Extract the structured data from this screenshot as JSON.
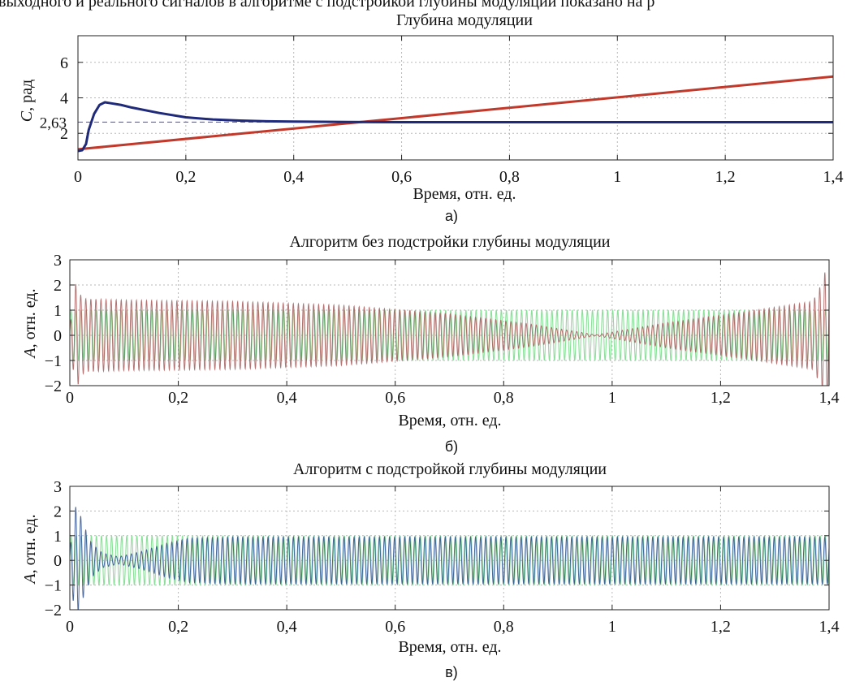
{
  "header_text": "выходного и реального сигналов в алгоритме с подстройкой глубины модуляции показано на р",
  "chart_data": [
    {
      "type": "line",
      "panel_label": "а)",
      "title": "Глубина модуляции",
      "xlabel": "Время, отн. ед.",
      "ylabel_italic": "C",
      "ylabel_rest": ", рад",
      "xlim": [
        0,
        1.4
      ],
      "ylim": [
        0.5,
        7.5
      ],
      "xticks": [
        0,
        0.2,
        0.4,
        0.6,
        0.8,
        1,
        1.2,
        1.4
      ],
      "xtick_labels": [
        "0",
        "0,2",
        "0,4",
        "0,6",
        "0,8",
        "1",
        "1,2",
        "1,4"
      ],
      "yticks": [
        2,
        4,
        6
      ],
      "ytick_labels": [
        "2",
        "4",
        "6"
      ],
      "reference_line": {
        "value": 2.63,
        "label": "2,63",
        "color": "#6a6a8a"
      },
      "grid": true,
      "series": [
        {
          "color": "#c0392b",
          "x": [
            0,
            1.4
          ],
          "y": [
            1.1,
            5.2
          ]
        },
        {
          "color": "#1f2a7a",
          "x": [
            0,
            0.008,
            0.015,
            0.02,
            0.03,
            0.04,
            0.05,
            0.06,
            0.08,
            0.1,
            0.15,
            0.2,
            0.25,
            0.3,
            0.35,
            0.4,
            0.5,
            0.6,
            0.8,
            1.0,
            1.2,
            1.4
          ],
          "y": [
            1.0,
            1.05,
            1.4,
            2.2,
            3.1,
            3.6,
            3.75,
            3.7,
            3.6,
            3.45,
            3.15,
            2.9,
            2.78,
            2.72,
            2.68,
            2.66,
            2.64,
            2.63,
            2.63,
            2.63,
            2.63,
            2.63
          ]
        }
      ]
    },
    {
      "type": "line",
      "panel_label": "б)",
      "title": "Алгоритм без подстройки глубины модуляции",
      "xlabel": "Время, отн. ед.",
      "ylabel_italic": "A",
      "ylabel_rest": ", отн. ед.",
      "xlim": [
        0,
        1.4
      ],
      "ylim": [
        -2,
        3
      ],
      "xticks": [
        0,
        0.2,
        0.4,
        0.6,
        0.8,
        1,
        1.2,
        1.4
      ],
      "xtick_labels": [
        "0",
        "0,2",
        "0,4",
        "0,6",
        "0,8",
        "1",
        "1,2",
        "1,4"
      ],
      "yticks": [
        -2,
        -1,
        0,
        1,
        2,
        3
      ],
      "ytick_labels": [
        "−2",
        "−1",
        "0",
        "1",
        "2",
        "3"
      ],
      "grid": true,
      "cycles": 150,
      "series": [
        {
          "color": "#7fdc8f",
          "amplitude_x": [
            0,
            1.4
          ],
          "amplitude": [
            1,
            1
          ]
        },
        {
          "color": "#a65a5a",
          "amplitude_x": [
            0,
            0.005,
            0.012,
            0.02,
            0.03,
            0.1,
            0.3,
            0.5,
            0.7,
            0.85,
            0.97,
            1.1,
            1.25,
            1.37,
            1.385,
            1.395,
            1.4
          ],
          "amplitude": [
            0.3,
            1.2,
            2.2,
            1.6,
            1.45,
            1.4,
            1.35,
            1.2,
            0.85,
            0.45,
            0.02,
            0.5,
            0.95,
            1.35,
            2.0,
            2.7,
            2.3
          ]
        }
      ]
    },
    {
      "type": "line",
      "panel_label": "в)",
      "title": "Алгоритм с подстройкой глубины модуляции",
      "xlabel": "Время, отн. ед.",
      "ylabel_italic": "A",
      "ylabel_rest": ", отн. ед.",
      "xlim": [
        0,
        1.4
      ],
      "ylim": [
        -2,
        3
      ],
      "xticks": [
        0,
        0.2,
        0.4,
        0.6,
        0.8,
        1,
        1.2,
        1.4
      ],
      "xtick_labels": [
        "0",
        "0,2",
        "0,4",
        "0,6",
        "0,8",
        "1",
        "1,2",
        "1,4"
      ],
      "yticks": [
        -2,
        -1,
        0,
        1,
        2,
        3
      ],
      "ytick_labels": [
        "−2",
        "−1",
        "0",
        "1",
        "2",
        "3"
      ],
      "grid": true,
      "cycles": 150,
      "series": [
        {
          "color": "#7fdc8f",
          "amplitude_x": [
            0,
            1.4
          ],
          "amplitude": [
            1,
            1
          ]
        },
        {
          "color": "#2c4f8c",
          "amplitude_x": [
            0,
            0.005,
            0.012,
            0.02,
            0.03,
            0.04,
            0.06,
            0.09,
            0.13,
            0.18,
            0.22,
            0.3,
            0.5,
            0.7,
            1.0,
            1.4
          ],
          "amplitude": [
            0.3,
            1.5,
            2.3,
            1.8,
            1.2,
            0.7,
            0.3,
            0.15,
            0.35,
            0.7,
            0.9,
            0.95,
            0.95,
            0.95,
            0.95,
            0.95
          ]
        }
      ]
    }
  ]
}
